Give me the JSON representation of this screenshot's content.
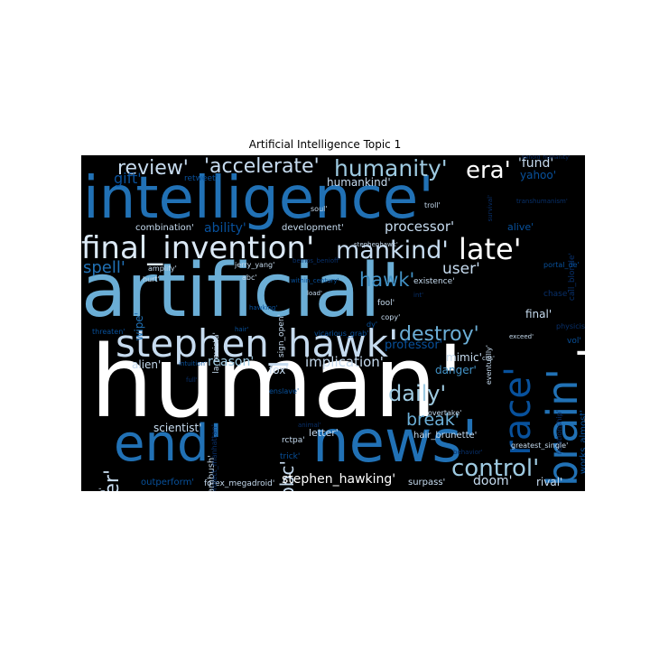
{
  "title": "Artificial Intelligence Topic 1",
  "colors": {
    "background": "#000000",
    "white": "#ffffff",
    "pale": "#dbe9f6",
    "light": "#c6dbef",
    "sky": "#9ecae1",
    "mid": "#6baed6",
    "blue": "#4292c6",
    "deep": "#2171b5",
    "navy": "#08519c",
    "dark": "#08306b"
  },
  "words": [
    {
      "text": "human'",
      "color": "white"
    },
    {
      "text": "artificial'",
      "color": "mid"
    },
    {
      "text": "intelligence'",
      "color": "deep"
    },
    {
      "text": "news'",
      "color": "deep"
    },
    {
      "text": "end'",
      "color": "deep"
    },
    {
      "text": "stephen_hawk'",
      "color": "light"
    },
    {
      "text": "final_invention'",
      "color": "pale"
    },
    {
      "text": "warn'",
      "color": "white"
    },
    {
      "text": "brain'",
      "color": "deep"
    },
    {
      "text": "race'",
      "color": "navy"
    },
    {
      "text": "mankind'",
      "color": "light"
    },
    {
      "text": "late'",
      "color": "white"
    },
    {
      "text": "humanity'",
      "color": "sky"
    },
    {
      "text": "review'",
      "color": "light"
    },
    {
      "text": "'accelerate'",
      "color": "light"
    },
    {
      "text": "era'",
      "color": "white"
    },
    {
      "text": "control'",
      "color": "sky"
    },
    {
      "text": "daily'",
      "color": "sky"
    },
    {
      "text": "destroy'",
      "color": "mid"
    },
    {
      "text": "break'",
      "color": "mid"
    },
    {
      "text": "frontier'",
      "color": "light"
    },
    {
      "text": "bbc'",
      "color": "light"
    },
    {
      "text": "hawk'",
      "color": "blue"
    },
    {
      "text": "spell'",
      "color": "deep"
    },
    {
      "text": "dream'",
      "color": "navy"
    },
    {
      "text": "user'",
      "color": "light"
    },
    {
      "text": "ability'",
      "color": "navy"
    },
    {
      "text": "processor'",
      "color": "light"
    },
    {
      "text": "stephen_hawking'",
      "color": "white"
    },
    {
      "text": "reason'",
      "color": "sky"
    },
    {
      "text": "implication'",
      "color": "light"
    },
    {
      "text": "professor'",
      "color": "navy"
    },
    {
      "text": "danger'",
      "color": "blue"
    },
    {
      "text": "alien'",
      "color": "light"
    },
    {
      "text": "fox'",
      "color": "light"
    },
    {
      "text": "scientist'",
      "color": "light"
    },
    {
      "text": "doom'",
      "color": "light"
    },
    {
      "text": "rival'",
      "color": "light"
    },
    {
      "text": "final'",
      "color": "light"
    },
    {
      "text": "mimic'",
      "color": "light"
    },
    {
      "text": "gift'",
      "color": "navy"
    },
    {
      "text": "'fund'",
      "color": "light"
    },
    {
      "text": "yahoo'",
      "color": "navy"
    },
    {
      "text": "humankind'",
      "color": "light"
    },
    {
      "text": "retweet'",
      "color": "navy"
    },
    {
      "text": "combination'",
      "color": "light"
    },
    {
      "text": "development'",
      "color": "light"
    },
    {
      "text": "alive'",
      "color": "navy"
    },
    {
      "text": "wipe'",
      "color": "deep"
    },
    {
      "text": "capitalism'",
      "color": "light"
    },
    {
      "text": "outperform'",
      "color": "navy"
    },
    {
      "text": "forex_megadroid'",
      "color": "light"
    },
    {
      "text": "surpass'",
      "color": "light"
    },
    {
      "text": "forex_ambush'",
      "color": "light"
    },
    {
      "text": "letter'",
      "color": "light"
    },
    {
      "text": "hair_brunette'",
      "color": "light"
    },
    {
      "text": "works_almost'",
      "color": "navy"
    },
    {
      "text": "relationship'",
      "color": "dark"
    },
    {
      "text": "greatest_single'",
      "color": "light"
    },
    {
      "text": "physicist'",
      "color": "dark"
    },
    {
      "text": "vol'",
      "color": "navy"
    },
    {
      "text": "chase'",
      "color": "dark"
    },
    {
      "text": "call_blonde'",
      "color": "dark"
    },
    {
      "text": "portal_de'",
      "color": "navy"
    },
    {
      "text": "existence'",
      "color": "light"
    },
    {
      "text": "fool'",
      "color": "light"
    },
    {
      "text": "copy'",
      "color": "light"
    },
    {
      "text": "eventually'",
      "color": "light"
    },
    {
      "text": "exceed'",
      "color": "light"
    },
    {
      "text": "cbs'",
      "color": "light"
    },
    {
      "text": "overtake'",
      "color": "light"
    },
    {
      "text": "rctpa'",
      "color": "light"
    },
    {
      "text": "trick'",
      "color": "navy"
    },
    {
      "text": "behavior'",
      "color": "dark"
    },
    {
      "text": "enslave'",
      "color": "navy"
    },
    {
      "text": "threaten'",
      "color": "navy"
    },
    {
      "text": "hurt'",
      "color": "light"
    },
    {
      "text": "amplify'",
      "color": "light"
    },
    {
      "text": "jerry_yang'",
      "color": "light"
    },
    {
      "text": "abc'",
      "color": "light"
    },
    {
      "text": "la_revista'",
      "color": "light"
    },
    {
      "text": "sign_open'",
      "color": "light"
    },
    {
      "text": "vicarious_grab'",
      "color": "navy"
    },
    {
      "text": "within_century'",
      "color": "navy"
    },
    {
      "text": "load'",
      "color": "light"
    },
    {
      "text": "soul'",
      "color": "light"
    },
    {
      "text": "troll'",
      "color": "light"
    },
    {
      "text": "transhumanism'",
      "color": "dark"
    },
    {
      "text": "survival'",
      "color": "dark"
    },
    {
      "text": "stephenhawk'",
      "color": "light"
    },
    {
      "text": "hawking'",
      "color": "navy"
    },
    {
      "text": "hair'",
      "color": "navy"
    },
    {
      "text": "intuition'",
      "color": "navy"
    },
    {
      "text": "project_manhattan'",
      "color": "dark"
    },
    {
      "text": "animal'",
      "color": "dark"
    },
    {
      "text": "full'",
      "color": "dark"
    },
    {
      "text": "behold_humanity'",
      "color": "dark"
    },
    {
      "text": "beinos_benioff'",
      "color": "dark"
    },
    {
      "text": "dy'",
      "color": "navy"
    },
    {
      "text": "int'",
      "color": "dark"
    }
  ]
}
